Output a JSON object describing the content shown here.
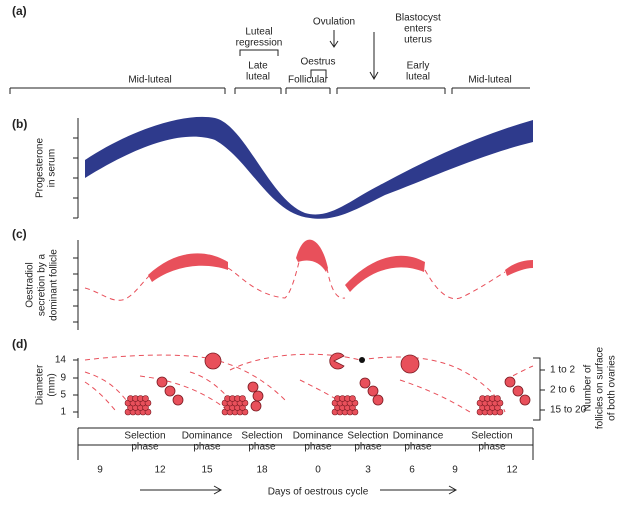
{
  "panels": {
    "a": "(a)",
    "b": "(b)",
    "c": "(c)",
    "d": "(d)"
  },
  "phases": {
    "mid_luteal_1": "Mid-luteal",
    "late_luteal": [
      "Late",
      "luteal"
    ],
    "follicular": "Follicular",
    "early_luteal": [
      "Early",
      "luteal"
    ],
    "mid_luteal_2": "Mid-luteal"
  },
  "events": {
    "luteal_regression": [
      "Luteal",
      "regression"
    ],
    "ovulation": "Ovulation",
    "oestrus": "Oestrus",
    "blastocyst": [
      "Blastocyst",
      "enters",
      "uterus"
    ]
  },
  "progesterone": {
    "y_label": [
      "Progesterone",
      "in serum"
    ]
  },
  "oestradiol": {
    "y_label": [
      "Oestradiol",
      "secretion by a",
      "dominant follicle"
    ]
  },
  "diameter": {
    "y_label": [
      "Diameter",
      "(mm)"
    ],
    "y_ticks": [
      "14",
      "9",
      "5",
      "1"
    ],
    "x_ticks": [
      "9",
      "12",
      "15",
      "18",
      "0",
      "3",
      "6",
      "9",
      "12"
    ],
    "x_label": "Days of oestrous cycle",
    "phase_labels": [
      [
        "Selection",
        "phase"
      ],
      [
        "Dominance",
        "phase"
      ],
      [
        "Selection",
        "phase"
      ],
      [
        "Dominance",
        "phase"
      ],
      [
        "Selection",
        "phase"
      ],
      [
        "Dominance",
        "phase"
      ],
      [
        "Selection",
        "phase"
      ]
    ],
    "count_labels": [
      "1 to 2",
      "2 to 6",
      "15 to 20"
    ],
    "count_title": [
      "Number of",
      "follicles on surface",
      "of both ovaries"
    ]
  }
}
